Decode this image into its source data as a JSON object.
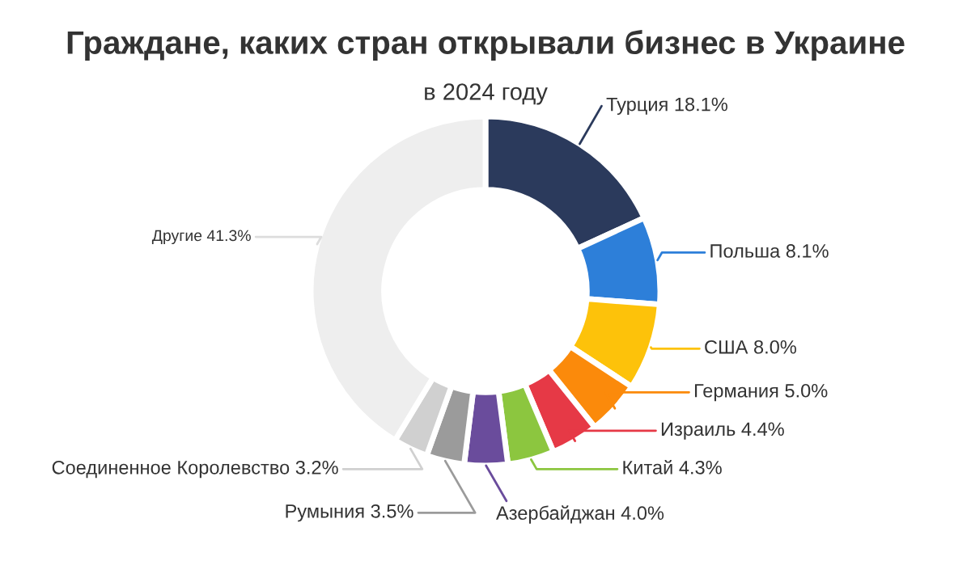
{
  "chart_data": {
    "type": "donut",
    "title": "Граждане, каких стран открывали бизнес в Украине",
    "subtitle": "в 2024 году",
    "categories": [
      "Турция",
      "Польша",
      "США",
      "Германия",
      "Израиль",
      "Китай",
      "Азербайджан",
      "Румыния",
      "Соединенное Королевство",
      "Другие"
    ],
    "values": [
      18.1,
      8.1,
      8.0,
      5.0,
      4.4,
      4.3,
      4.0,
      3.5,
      3.2,
      41.3
    ],
    "value_labels": [
      "18.1%",
      "8.1%",
      "8.0%",
      "5.0%",
      "4.4%",
      "4.3%",
      "4.0%",
      "3.5%",
      "3.2%",
      "41.3%"
    ],
    "colors": [
      "#2b3a5c",
      "#2d7fd9",
      "#fdc20a",
      "#fb8a0b",
      "#e63946",
      "#8cc63f",
      "#6a4c9c",
      "#9b9b9b",
      "#d0d0d0",
      "#eeeeee"
    ],
    "legend": false
  }
}
